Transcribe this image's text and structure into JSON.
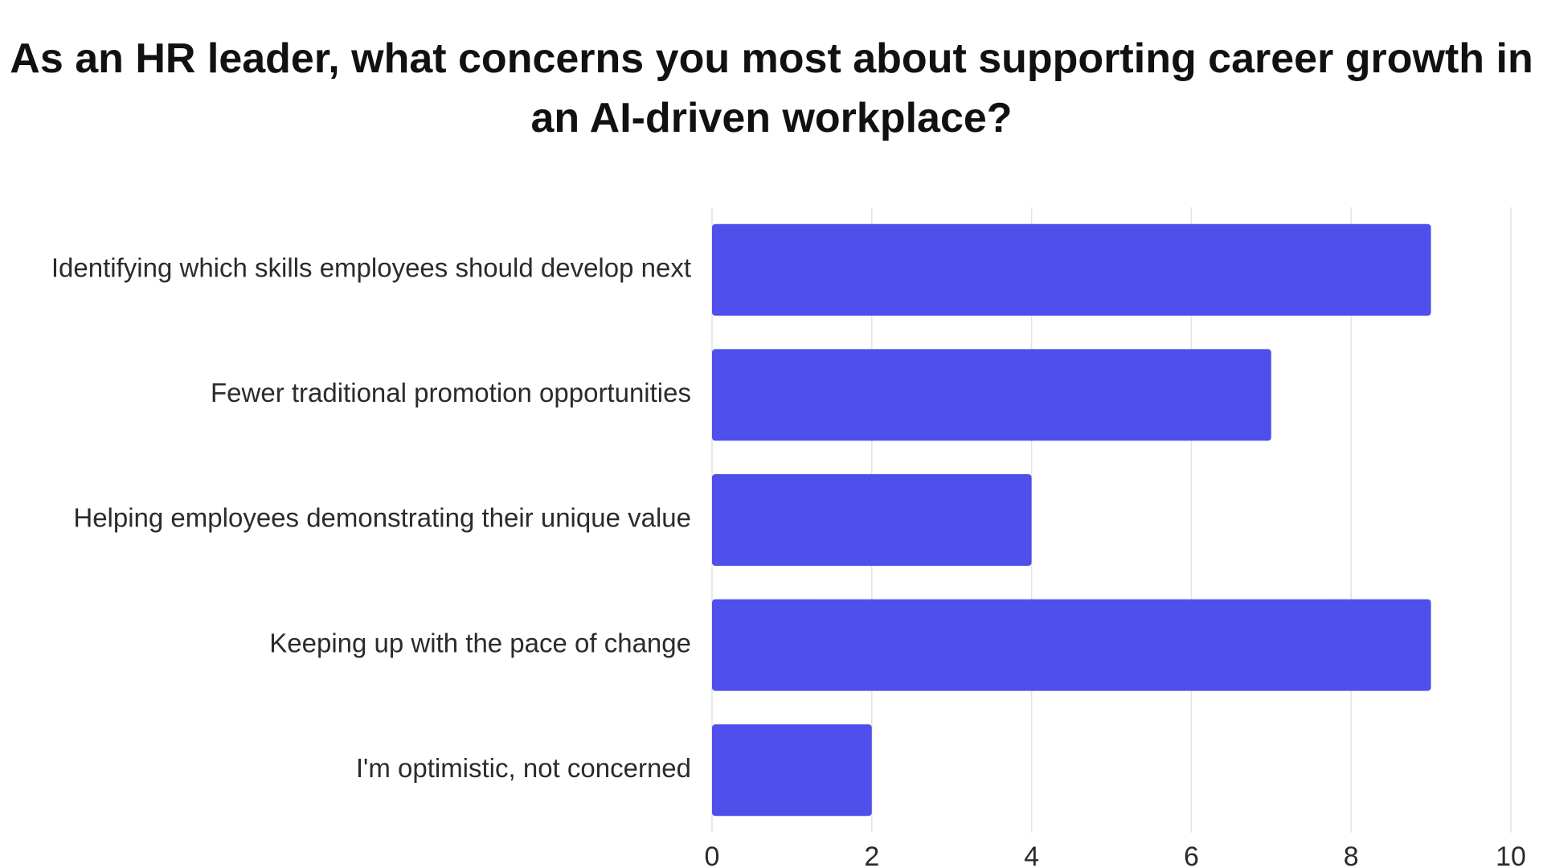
{
  "chart_data": {
    "type": "bar",
    "orientation": "horizontal",
    "title": "As an HR leader, what concerns you most about supporting career growth in an AI-driven workplace?",
    "xlabel": "",
    "ylabel": "",
    "categories": [
      "Identifying which skills employees should develop next",
      "Fewer traditional promotion opportunities",
      "Helping employees demonstrating their unique value",
      "Keeping up with the pace of change",
      "I'm optimistic, not concerned"
    ],
    "values": [
      9,
      7,
      4,
      9,
      2
    ],
    "xlim": [
      0,
      10
    ],
    "xticks": [
      "0",
      "2",
      "4",
      "6",
      "8",
      "10"
    ],
    "grid": true,
    "bar_color": "#4F4FEC",
    "grid_color": "#E3E3E3",
    "legend": "none"
  }
}
